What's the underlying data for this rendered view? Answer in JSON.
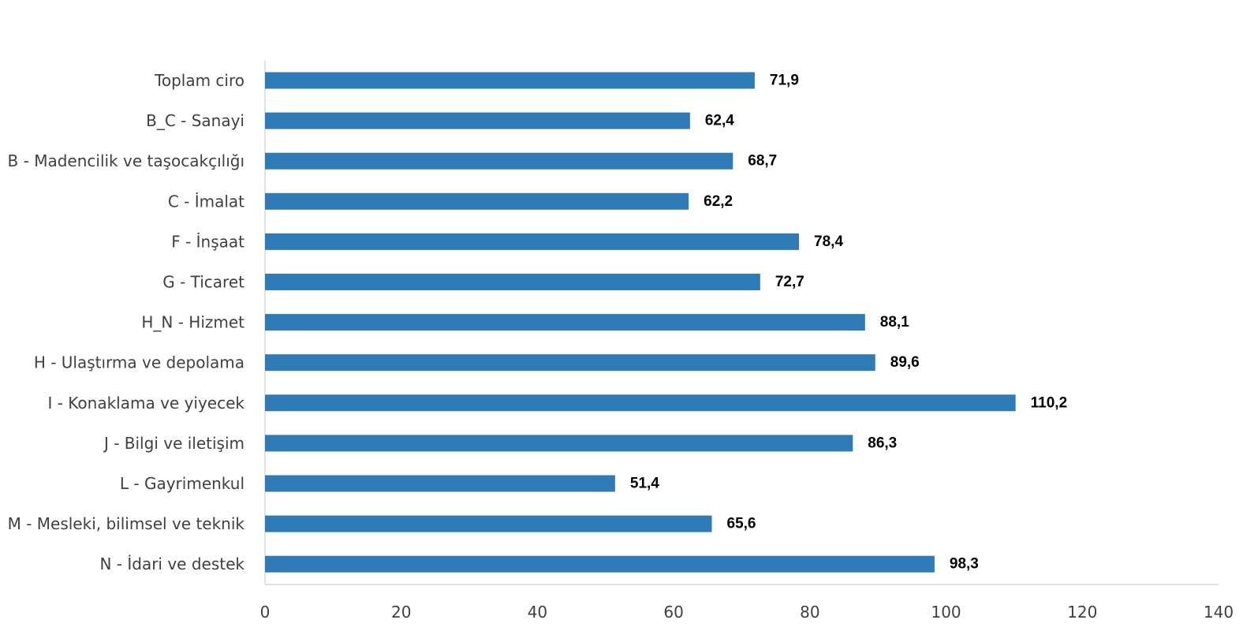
{
  "chart_data": {
    "type": "bar",
    "orientation": "horizontal",
    "categories": [
      "Toplam ciro",
      "B_C - Sanayi",
      "B - Madencilik ve taşocakçılığı",
      "C - İmalat",
      "F - İnşaat",
      "G - Ticaret",
      "H_N - Hizmet",
      "H - Ulaştırma ve depolama",
      "I - Konaklama ve yiyecek",
      "J - Bilgi ve iletişim",
      "L - Gayrimenkul",
      "M - Mesleki, bilimsel ve teknik",
      "N - İdari ve destek"
    ],
    "values": [
      71.9,
      62.4,
      68.7,
      62.2,
      78.4,
      72.7,
      88.1,
      89.6,
      110.2,
      86.3,
      51.4,
      65.6,
      98.3
    ],
    "data_labels": [
      "71,9",
      "62,4",
      "68,7",
      "62,2",
      "78,4",
      "72,7",
      "88,1",
      "89,6",
      "110,2",
      "86,3",
      "51,4",
      "65,6",
      "98,3"
    ],
    "xlim": [
      0,
      140
    ],
    "x_ticks": [
      "0",
      "20",
      "40",
      "60",
      "80",
      "100",
      "120",
      "140"
    ],
    "title": "",
    "xlabel": "",
    "ylabel": "",
    "grid": false,
    "legend": "none",
    "bar_color": "#2E7BB8"
  }
}
